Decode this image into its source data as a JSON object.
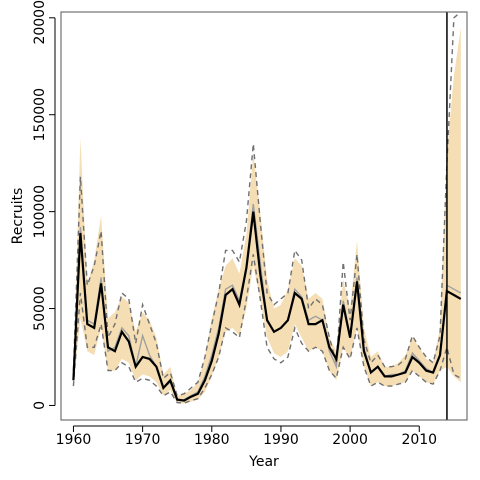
{
  "chart_data": {
    "type": "line",
    "title": "",
    "xlabel": "Year",
    "ylabel": "Recruits",
    "xlim": [
      1958.2,
      2016.9
    ],
    "ylim": [
      -7500,
      203000
    ],
    "x_ticks": [
      1960,
      1970,
      1980,
      1990,
      2000,
      2010
    ],
    "x_tick_labels": [
      "1960",
      "1970",
      "1980",
      "1990",
      "2000",
      "2010"
    ],
    "y_ticks": [
      0,
      50000,
      100000,
      150000,
      200000
    ],
    "y_tick_labels": [
      "0",
      "50000",
      "100000",
      "150000",
      "200000"
    ],
    "vline_x": 2014,
    "colors": {
      "band": "#f5deb3",
      "median": "#000000",
      "dashed": "#707070",
      "gray_line": "#a0a0a0",
      "vline": "#000000"
    },
    "x": [
      1960,
      1961,
      1962,
      1963,
      1964,
      1965,
      1966,
      1967,
      1968,
      1969,
      1970,
      1971,
      1972,
      1973,
      1974,
      1975,
      1976,
      1977,
      1978,
      1979,
      1980,
      1981,
      1982,
      1983,
      1984,
      1985,
      1986,
      1987,
      1988,
      1989,
      1990,
      1991,
      1992,
      1993,
      1994,
      1995,
      1996,
      1997,
      1998,
      1999,
      2000,
      2001,
      2002,
      2003,
      2004,
      2005,
      2006,
      2007,
      2008,
      2009,
      2010,
      2011,
      2012,
      2013,
      2014,
      2015,
      2016
    ],
    "series": [
      {
        "role": "band",
        "lower": [
          9000,
          45000,
          28000,
          26000,
          40000,
          18000,
          18000,
          24000,
          22000,
          13000,
          16000,
          15000,
          12000,
          5000,
          8000,
          1000,
          1000,
          2000,
          3000,
          7000,
          15000,
          25000,
          38000,
          40000,
          36000,
          50000,
          72000,
          55000,
          35000,
          27000,
          25000,
          28000,
          42000,
          35000,
          28000,
          30000,
          28000,
          18000,
          13000,
          30000,
          24000,
          40000,
          20000,
          10000,
          12000,
          10000,
          10000,
          11000,
          12000,
          18000,
          15000,
          12000,
          11000,
          18000,
          20000,
          15000,
          12000
        ],
        "upper": [
          16000,
          138000,
          62000,
          75000,
          98000,
          45000,
          48000,
          56000,
          53000,
          38000,
          48000,
          44000,
          35000,
          16000,
          20000,
          5000,
          6000,
          8000,
          12000,
          25000,
          45000,
          60000,
          72000,
          76000,
          68000,
          88000,
          130000,
          100000,
          65000,
          50000,
          52000,
          60000,
          76000,
          72000,
          55000,
          58000,
          55000,
          35000,
          28000,
          65000,
          50000,
          85000,
          40000,
          25000,
          28000,
          20000,
          20000,
          22000,
          26000,
          35000,
          30000,
          24000,
          22000,
          40000,
          130000,
          170000,
          195000
        ]
      },
      {
        "role": "dashed-upper",
        "values": [
          18000,
          118000,
          62000,
          72000,
          90000,
          35000,
          42000,
          58000,
          55000,
          32000,
          52000,
          42000,
          32000,
          14000,
          17000,
          5000,
          6000,
          9000,
          12000,
          25000,
          42000,
          58000,
          80000,
          80000,
          74000,
          95000,
          135000,
          95000,
          58000,
          52000,
          55000,
          58000,
          80000,
          75000,
          50000,
          55000,
          52000,
          35000,
          22000,
          74000,
          44000,
          78000,
          34000,
          22000,
          26000,
          20000,
          20000,
          21000,
          24000,
          36000,
          30000,
          25000,
          22000,
          36000,
          125000,
          200000,
          205000
        ]
      },
      {
        "role": "dashed-lower",
        "values": [
          10000,
          58000,
          30000,
          30000,
          42000,
          18000,
          18000,
          22000,
          20000,
          12000,
          14000,
          13000,
          10000,
          5000,
          7000,
          1500,
          1200,
          2500,
          3500,
          9000,
          16000,
          25000,
          40000,
          38000,
          35000,
          55000,
          78000,
          55000,
          30000,
          24000,
          22000,
          25000,
          40000,
          32000,
          28000,
          30000,
          28000,
          18000,
          14000,
          30000,
          24000,
          40000,
          20000,
          10000,
          12000,
          10000,
          10000,
          11000,
          12000,
          18000,
          15000,
          12000,
          11000,
          18000,
          30000,
          16000,
          14000
        ]
      },
      {
        "role": "gray",
        "values": [
          14000,
          92000,
          44000,
          42000,
          66000,
          28000,
          30000,
          40000,
          36000,
          20000,
          36000,
          26000,
          20000,
          9000,
          12000,
          2500,
          3000,
          5000,
          7000,
          15000,
          26000,
          40000,
          60000,
          62000,
          54000,
          72000,
          104000,
          74000,
          44000,
          38000,
          40000,
          44000,
          60000,
          56000,
          44000,
          46000,
          44000,
          28000,
          20000,
          54000,
          36000,
          66000,
          30000,
          17000,
          20000,
          15000,
          16000,
          16000,
          18000,
          27000,
          23000,
          19000,
          17000,
          26000,
          62000,
          60000,
          58000
        ]
      },
      {
        "role": "median",
        "values": [
          13000,
          89000,
          42000,
          40000,
          63000,
          30000,
          28000,
          38000,
          33000,
          20000,
          25000,
          24000,
          20000,
          9000,
          13000,
          3000,
          2500,
          4500,
          6000,
          13000,
          23000,
          37000,
          57000,
          60000,
          52000,
          71000,
          100000,
          68000,
          44000,
          38000,
          40000,
          44000,
          58000,
          55000,
          42000,
          42000,
          44000,
          30000,
          24000,
          52000,
          35000,
          64000,
          28000,
          17000,
          20000,
          15000,
          15000,
          16000,
          17000,
          25000,
          22000,
          18000,
          17000,
          26000,
          59000,
          57000,
          55000
        ]
      }
    ]
  }
}
